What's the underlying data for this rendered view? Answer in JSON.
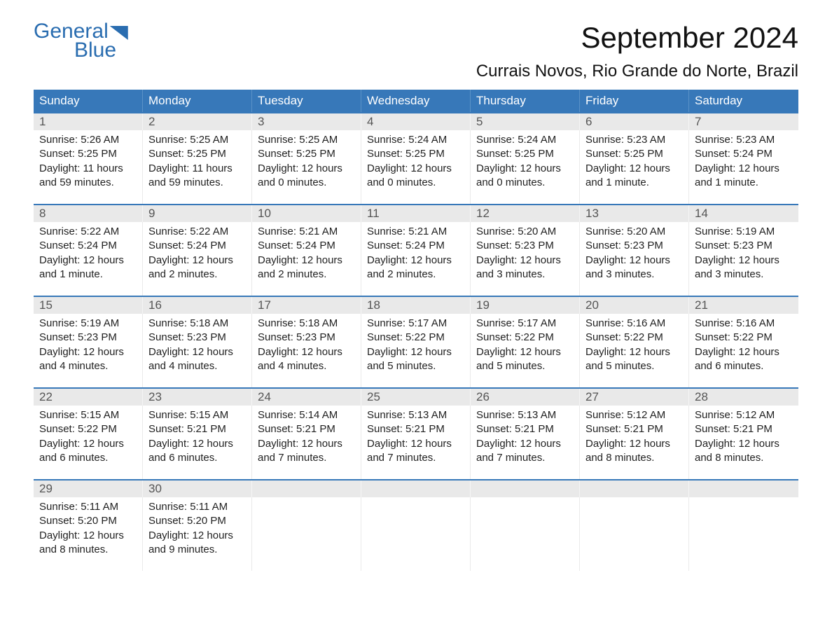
{
  "logo": {
    "word1": "General",
    "word2": "Blue",
    "color": "#2a6db0"
  },
  "title": "September 2024",
  "location": "Currais Novos, Rio Grande do Norte, Brazil",
  "colors": {
    "header_bg": "#3778b9",
    "header_text": "#ffffff",
    "daynum_bg": "#e9e9e9",
    "border": "#3778b9",
    "body_text": "#222222",
    "background": "#ffffff"
  },
  "typography": {
    "title_fontsize": 42,
    "location_fontsize": 24,
    "header_fontsize": 17,
    "cell_fontsize": 15
  },
  "layout": {
    "columns": 7,
    "rows": 5
  },
  "day_names": [
    "Sunday",
    "Monday",
    "Tuesday",
    "Wednesday",
    "Thursday",
    "Friday",
    "Saturday"
  ],
  "weeks": [
    {
      "nums": [
        "1",
        "2",
        "3",
        "4",
        "5",
        "6",
        "7"
      ],
      "cells": [
        {
          "sunrise": "Sunrise: 5:26 AM",
          "sunset": "Sunset: 5:25 PM",
          "daylight1": "Daylight: 11 hours",
          "daylight2": "and 59 minutes."
        },
        {
          "sunrise": "Sunrise: 5:25 AM",
          "sunset": "Sunset: 5:25 PM",
          "daylight1": "Daylight: 11 hours",
          "daylight2": "and 59 minutes."
        },
        {
          "sunrise": "Sunrise: 5:25 AM",
          "sunset": "Sunset: 5:25 PM",
          "daylight1": "Daylight: 12 hours",
          "daylight2": "and 0 minutes."
        },
        {
          "sunrise": "Sunrise: 5:24 AM",
          "sunset": "Sunset: 5:25 PM",
          "daylight1": "Daylight: 12 hours",
          "daylight2": "and 0 minutes."
        },
        {
          "sunrise": "Sunrise: 5:24 AM",
          "sunset": "Sunset: 5:25 PM",
          "daylight1": "Daylight: 12 hours",
          "daylight2": "and 0 minutes."
        },
        {
          "sunrise": "Sunrise: 5:23 AM",
          "sunset": "Sunset: 5:25 PM",
          "daylight1": "Daylight: 12 hours",
          "daylight2": "and 1 minute."
        },
        {
          "sunrise": "Sunrise: 5:23 AM",
          "sunset": "Sunset: 5:24 PM",
          "daylight1": "Daylight: 12 hours",
          "daylight2": "and 1 minute."
        }
      ]
    },
    {
      "nums": [
        "8",
        "9",
        "10",
        "11",
        "12",
        "13",
        "14"
      ],
      "cells": [
        {
          "sunrise": "Sunrise: 5:22 AM",
          "sunset": "Sunset: 5:24 PM",
          "daylight1": "Daylight: 12 hours",
          "daylight2": "and 1 minute."
        },
        {
          "sunrise": "Sunrise: 5:22 AM",
          "sunset": "Sunset: 5:24 PM",
          "daylight1": "Daylight: 12 hours",
          "daylight2": "and 2 minutes."
        },
        {
          "sunrise": "Sunrise: 5:21 AM",
          "sunset": "Sunset: 5:24 PM",
          "daylight1": "Daylight: 12 hours",
          "daylight2": "and 2 minutes."
        },
        {
          "sunrise": "Sunrise: 5:21 AM",
          "sunset": "Sunset: 5:24 PM",
          "daylight1": "Daylight: 12 hours",
          "daylight2": "and 2 minutes."
        },
        {
          "sunrise": "Sunrise: 5:20 AM",
          "sunset": "Sunset: 5:23 PM",
          "daylight1": "Daylight: 12 hours",
          "daylight2": "and 3 minutes."
        },
        {
          "sunrise": "Sunrise: 5:20 AM",
          "sunset": "Sunset: 5:23 PM",
          "daylight1": "Daylight: 12 hours",
          "daylight2": "and 3 minutes."
        },
        {
          "sunrise": "Sunrise: 5:19 AM",
          "sunset": "Sunset: 5:23 PM",
          "daylight1": "Daylight: 12 hours",
          "daylight2": "and 3 minutes."
        }
      ]
    },
    {
      "nums": [
        "15",
        "16",
        "17",
        "18",
        "19",
        "20",
        "21"
      ],
      "cells": [
        {
          "sunrise": "Sunrise: 5:19 AM",
          "sunset": "Sunset: 5:23 PM",
          "daylight1": "Daylight: 12 hours",
          "daylight2": "and 4 minutes."
        },
        {
          "sunrise": "Sunrise: 5:18 AM",
          "sunset": "Sunset: 5:23 PM",
          "daylight1": "Daylight: 12 hours",
          "daylight2": "and 4 minutes."
        },
        {
          "sunrise": "Sunrise: 5:18 AM",
          "sunset": "Sunset: 5:23 PM",
          "daylight1": "Daylight: 12 hours",
          "daylight2": "and 4 minutes."
        },
        {
          "sunrise": "Sunrise: 5:17 AM",
          "sunset": "Sunset: 5:22 PM",
          "daylight1": "Daylight: 12 hours",
          "daylight2": "and 5 minutes."
        },
        {
          "sunrise": "Sunrise: 5:17 AM",
          "sunset": "Sunset: 5:22 PM",
          "daylight1": "Daylight: 12 hours",
          "daylight2": "and 5 minutes."
        },
        {
          "sunrise": "Sunrise: 5:16 AM",
          "sunset": "Sunset: 5:22 PM",
          "daylight1": "Daylight: 12 hours",
          "daylight2": "and 5 minutes."
        },
        {
          "sunrise": "Sunrise: 5:16 AM",
          "sunset": "Sunset: 5:22 PM",
          "daylight1": "Daylight: 12 hours",
          "daylight2": "and 6 minutes."
        }
      ]
    },
    {
      "nums": [
        "22",
        "23",
        "24",
        "25",
        "26",
        "27",
        "28"
      ],
      "cells": [
        {
          "sunrise": "Sunrise: 5:15 AM",
          "sunset": "Sunset: 5:22 PM",
          "daylight1": "Daylight: 12 hours",
          "daylight2": "and 6 minutes."
        },
        {
          "sunrise": "Sunrise: 5:15 AM",
          "sunset": "Sunset: 5:21 PM",
          "daylight1": "Daylight: 12 hours",
          "daylight2": "and 6 minutes."
        },
        {
          "sunrise": "Sunrise: 5:14 AM",
          "sunset": "Sunset: 5:21 PM",
          "daylight1": "Daylight: 12 hours",
          "daylight2": "and 7 minutes."
        },
        {
          "sunrise": "Sunrise: 5:13 AM",
          "sunset": "Sunset: 5:21 PM",
          "daylight1": "Daylight: 12 hours",
          "daylight2": "and 7 minutes."
        },
        {
          "sunrise": "Sunrise: 5:13 AM",
          "sunset": "Sunset: 5:21 PM",
          "daylight1": "Daylight: 12 hours",
          "daylight2": "and 7 minutes."
        },
        {
          "sunrise": "Sunrise: 5:12 AM",
          "sunset": "Sunset: 5:21 PM",
          "daylight1": "Daylight: 12 hours",
          "daylight2": "and 8 minutes."
        },
        {
          "sunrise": "Sunrise: 5:12 AM",
          "sunset": "Sunset: 5:21 PM",
          "daylight1": "Daylight: 12 hours",
          "daylight2": "and 8 minutes."
        }
      ]
    },
    {
      "nums": [
        "29",
        "30",
        "",
        "",
        "",
        "",
        ""
      ],
      "cells": [
        {
          "sunrise": "Sunrise: 5:11 AM",
          "sunset": "Sunset: 5:20 PM",
          "daylight1": "Daylight: 12 hours",
          "daylight2": "and 8 minutes."
        },
        {
          "sunrise": "Sunrise: 5:11 AM",
          "sunset": "Sunset: 5:20 PM",
          "daylight1": "Daylight: 12 hours",
          "daylight2": "and 9 minutes."
        },
        {
          "sunrise": "",
          "sunset": "",
          "daylight1": "",
          "daylight2": ""
        },
        {
          "sunrise": "",
          "sunset": "",
          "daylight1": "",
          "daylight2": ""
        },
        {
          "sunrise": "",
          "sunset": "",
          "daylight1": "",
          "daylight2": ""
        },
        {
          "sunrise": "",
          "sunset": "",
          "daylight1": "",
          "daylight2": ""
        },
        {
          "sunrise": "",
          "sunset": "",
          "daylight1": "",
          "daylight2": ""
        }
      ]
    }
  ]
}
